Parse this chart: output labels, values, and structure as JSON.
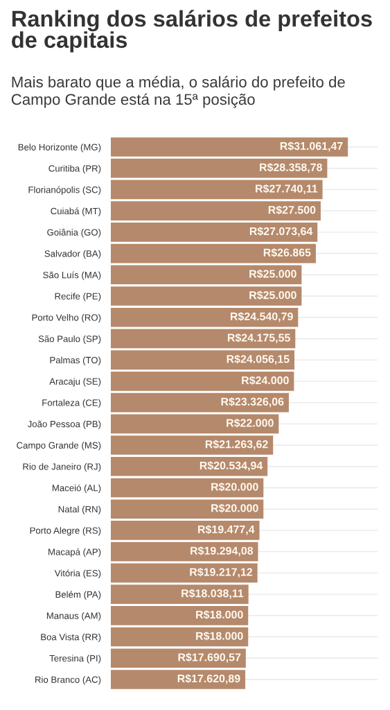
{
  "chart_data": {
    "type": "bar",
    "orientation": "horizontal",
    "title": "Ranking dos salários de prefeitos de capitais",
    "subtitle": "Mais barato que a média, o salário do prefeito de Campo Grande está na 15ª posição",
    "categories": [
      "Belo Horizonte (MG)",
      "Curitiba (PR)",
      "Florianópolis (SC)",
      "Cuiabá (MT)",
      "Goiânia (GO)",
      "Salvador (BA)",
      "São Luís (MA)",
      "Recife (PE)",
      "Porto Velho (RO)",
      "São Paulo (SP)",
      "Palmas (TO)",
      "Aracaju (SE)",
      "Fortaleza (CE)",
      "João Pessoa (PB)",
      "Campo Grande (MS)",
      "Rio de Janeiro (RJ)",
      "Maceió (AL)",
      "Natal (RN)",
      "Porto Alegre (RS)",
      "Macapá (AP)",
      "Vitória (ES)",
      "Belém (PA)",
      "Manaus (AM)",
      "Boa Vista (RR)",
      "Teresina (PI)",
      "Rio Branco (AC)"
    ],
    "values": [
      31061.47,
      28358.78,
      27740.11,
      27500,
      27073.64,
      26865,
      25000,
      25000,
      24540.79,
      24175.55,
      24056.15,
      24000,
      23326.06,
      22000,
      21263.62,
      20534.94,
      20000,
      20000,
      19477.4,
      19294.08,
      19217.12,
      18038.11,
      18000,
      18000,
      17690.57,
      17620.89
    ],
    "value_labels": [
      "R$31.061,47",
      "R$28.358,78",
      "R$27.740,11",
      "R$27.500",
      "R$27.073,64",
      "R$26.865",
      "R$25.000",
      "R$25.000",
      "R$24.540,79",
      "R$24.175,55",
      "R$24.056,15",
      "R$24.000",
      "R$23.326,06",
      "R$22.000",
      "R$21.263,62",
      "R$20.534,94",
      "R$20.000",
      "R$20.000",
      "R$19.477,4",
      "R$19.294,08",
      "R$19.217,12",
      "R$18.038,11",
      "R$18.000",
      "R$18.000",
      "R$17.690,57",
      "R$17.620,89"
    ],
    "color": "#b5896b",
    "grid": "y",
    "tick_labels": "y"
  }
}
